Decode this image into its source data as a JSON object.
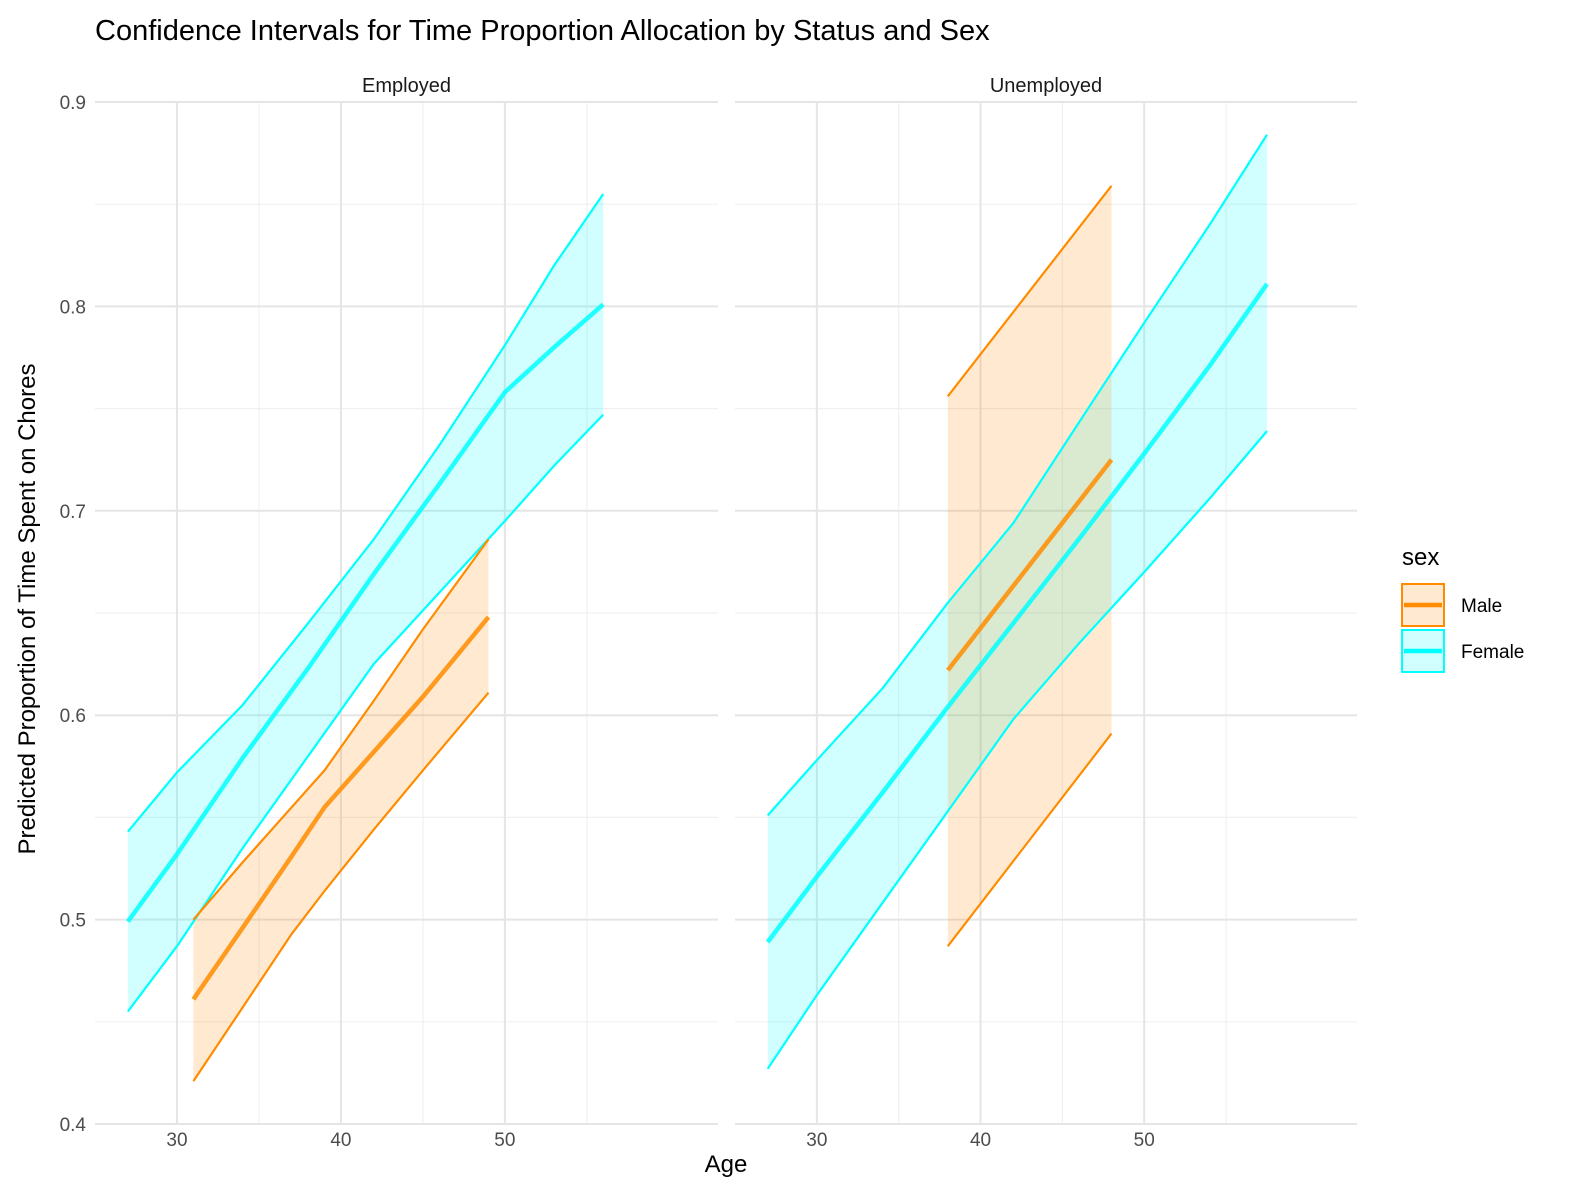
{
  "chart_data": {
    "type": "line",
    "title": "Confidence Intervals for Time Proportion Allocation by Status and Sex",
    "xlabel": "Age",
    "ylabel": "Predicted Proportion of Time Spent on Chores",
    "xlim": [
      25,
      63
    ],
    "ylim": [
      0.4,
      0.9
    ],
    "x_ticks": [
      30,
      40,
      50
    ],
    "y_ticks": [
      0.4,
      0.5,
      0.6,
      0.7,
      0.8,
      0.9
    ],
    "grid": true,
    "legend": {
      "title": "sex",
      "placement": "right",
      "entries": [
        "Male",
        "Female"
      ]
    },
    "colors": {
      "Male": "#FF8C00",
      "Female": "#00FFFF"
    },
    "panels": [
      {
        "label": "Employed",
        "series": [
          {
            "name": "Female",
            "x": [
              27,
              30,
              34,
              38,
              42,
              46,
              50,
              53,
              56
            ],
            "y": [
              0.499,
              0.532,
              0.579,
              0.623,
              0.669,
              0.713,
              0.758,
              0.78,
              0.801
            ],
            "lower": [
              0.455,
              0.487,
              0.535,
              0.58,
              0.625,
              0.66,
              0.695,
              0.722,
              0.747
            ],
            "upper": [
              0.543,
              0.572,
              0.605,
              0.645,
              0.686,
              0.732,
              0.781,
              0.82,
              0.855
            ]
          },
          {
            "name": "Male",
            "x": [
              31,
              34,
              37,
              39,
              42,
              45,
              49
            ],
            "y": [
              0.461,
              0.496,
              0.531,
              0.555,
              0.582,
              0.609,
              0.648
            ],
            "lower": [
              0.421,
              0.457,
              0.493,
              0.514,
              0.544,
              0.573,
              0.611
            ],
            "upper": [
              0.5,
              0.528,
              0.555,
              0.573,
              0.607,
              0.642,
              0.686
            ]
          }
        ]
      },
      {
        "label": "Unemployed",
        "series": [
          {
            "name": "Female",
            "x": [
              27,
              30,
              34,
              38,
              42,
              46,
              50,
              54,
              57.5
            ],
            "y": [
              0.489,
              0.521,
              0.562,
              0.604,
              0.645,
              0.686,
              0.728,
              0.771,
              0.811
            ],
            "lower": [
              0.427,
              0.463,
              0.508,
              0.553,
              0.598,
              0.635,
              0.67,
              0.706,
              0.739
            ],
            "upper": [
              0.551,
              0.578,
              0.613,
              0.655,
              0.694,
              0.743,
              0.792,
              0.84,
              0.884
            ]
          },
          {
            "name": "Male",
            "x": [
              38,
              48
            ],
            "y": [
              0.622,
              0.725
            ],
            "lower": [
              0.487,
              0.591
            ],
            "upper": [
              0.756,
              0.859
            ]
          }
        ]
      }
    ]
  }
}
